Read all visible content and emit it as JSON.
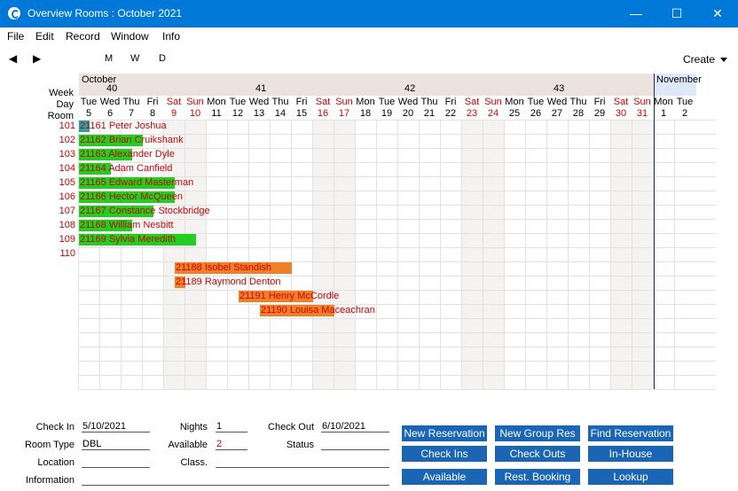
{
  "window": {
    "title": "Overview Rooms : October 2021",
    "minimize": "—",
    "maximize": "☐",
    "close": "✕"
  },
  "menu": [
    "File",
    "Edit",
    "Record",
    "Window",
    "Info"
  ],
  "toolbar": {
    "prev": "◀",
    "next": "▶",
    "mode_month": "M",
    "mode_week": "W",
    "mode_day": "D",
    "create": "Create"
  },
  "calendar": {
    "row_labels": {
      "week": "Week",
      "day": "Day",
      "room": "Room"
    },
    "months": [
      {
        "label": "October"
      },
      {
        "label": "November"
      }
    ],
    "weeks": [
      "40",
      "41",
      "42",
      "43"
    ],
    "days": [
      {
        "name": "Tue",
        "num": "5",
        "weekend": false
      },
      {
        "name": "Wed",
        "num": "6",
        "weekend": false
      },
      {
        "name": "Thu",
        "num": "7",
        "weekend": false
      },
      {
        "name": "Fri",
        "num": "8",
        "weekend": false
      },
      {
        "name": "Sat",
        "num": "9",
        "weekend": true
      },
      {
        "name": "Sun",
        "num": "10",
        "weekend": true
      },
      {
        "name": "Mon",
        "num": "11",
        "weekend": false
      },
      {
        "name": "Tue",
        "num": "12",
        "weekend": false
      },
      {
        "name": "Wed",
        "num": "13",
        "weekend": false
      },
      {
        "name": "Thu",
        "num": "14",
        "weekend": false
      },
      {
        "name": "Fri",
        "num": "15",
        "weekend": false
      },
      {
        "name": "Sat",
        "num": "16",
        "weekend": true
      },
      {
        "name": "Sun",
        "num": "17",
        "weekend": true
      },
      {
        "name": "Mon",
        "num": "18",
        "weekend": false
      },
      {
        "name": "Tue",
        "num": "19",
        "weekend": false
      },
      {
        "name": "Wed",
        "num": "20",
        "weekend": false
      },
      {
        "name": "Thu",
        "num": "21",
        "weekend": false
      },
      {
        "name": "Fri",
        "num": "22",
        "weekend": false
      },
      {
        "name": "Sat",
        "num": "23",
        "weekend": true
      },
      {
        "name": "Sun",
        "num": "24",
        "weekend": true
      },
      {
        "name": "Mon",
        "num": "25",
        "weekend": false
      },
      {
        "name": "Tue",
        "num": "26",
        "weekend": false
      },
      {
        "name": "Wed",
        "num": "27",
        "weekend": false
      },
      {
        "name": "Thu",
        "num": "28",
        "weekend": false
      },
      {
        "name": "Fri",
        "num": "29",
        "weekend": false
      },
      {
        "name": "Sat",
        "num": "30",
        "weekend": true
      },
      {
        "name": "Sun",
        "num": "31",
        "weekend": true
      },
      {
        "name": "Mon",
        "num": "1",
        "weekend": false
      },
      {
        "name": "Tue",
        "num": "2",
        "weekend": false
      }
    ],
    "rooms": [
      "101",
      "102",
      "103",
      "104",
      "105",
      "106",
      "107",
      "108",
      "109",
      "110"
    ],
    "reservations": [
      {
        "row": 0,
        "start": 0,
        "nights": 0.5,
        "color": "teal",
        "label": "21161 Peter Joshua"
      },
      {
        "row": 1,
        "start": 0,
        "nights": 3,
        "color": "green",
        "label": "21162 Brian Cruikshank"
      },
      {
        "row": 2,
        "start": 0,
        "nights": 2.5,
        "color": "green",
        "label": "21163 Alexander Dyle"
      },
      {
        "row": 3,
        "start": 0,
        "nights": 1.5,
        "color": "green",
        "label": "21164 Adam Canfield"
      },
      {
        "row": 4,
        "start": 0,
        "nights": 4.5,
        "color": "green",
        "label": "21165 Edward Masterman"
      },
      {
        "row": 5,
        "start": 0,
        "nights": 4.5,
        "color": "green",
        "label": "21166 Hector McQueen"
      },
      {
        "row": 6,
        "start": 0,
        "nights": 3.5,
        "color": "green",
        "label": "21167 Constance Stockbridge"
      },
      {
        "row": 7,
        "start": 0,
        "nights": 2.5,
        "color": "green",
        "label": "21168 William Nesbitt"
      },
      {
        "row": 8,
        "start": 0,
        "nights": 5.5,
        "color": "green",
        "label": "21169 Sylvia Meredith"
      },
      {
        "row": 10,
        "start": 4.5,
        "nights": 5.5,
        "color": "orange",
        "label": "21188 Isobel Standish"
      },
      {
        "row": 11,
        "start": 4.5,
        "nights": 0.5,
        "color": "orange",
        "label": "21189 Raymond Denton"
      },
      {
        "row": 12,
        "start": 7.5,
        "nights": 3.5,
        "color": "orange",
        "label": "21191 Henry McCordle"
      },
      {
        "row": 13,
        "start": 8.5,
        "nights": 3.5,
        "color": "orange",
        "label": "21190 Louisa Maceachran"
      }
    ]
  },
  "form": {
    "check_in_label": "Check In",
    "check_in": "5/10/2021",
    "nights_label": "Nights",
    "nights": "1",
    "check_out_label": "Check Out",
    "check_out": "6/10/2021",
    "room_type_label": "Room Type",
    "room_type": "DBL",
    "available_label": "Available",
    "available": "2",
    "status_label": "Status",
    "status": "",
    "location_label": "Location",
    "location": "",
    "class_label": "Class.",
    "class": "",
    "information_label": "Information",
    "information": ""
  },
  "buttons": {
    "new_reservation": "New Reservation",
    "new_group_res": "New Group Res",
    "find_reservation": "Find Reservation",
    "check_ins": "Check Ins",
    "check_outs": "Check Outs",
    "in_house": "In-House",
    "available": "Available",
    "rest_booking": "Rest. Booking",
    "lookup": "Lookup"
  },
  "colors": {
    "accent": "#0078d7",
    "button": "#1a66b5",
    "weekend_text": "#d00000",
    "checked_in": "#20d020",
    "expected": "#f08028",
    "highlight": "#2aa0a8"
  }
}
